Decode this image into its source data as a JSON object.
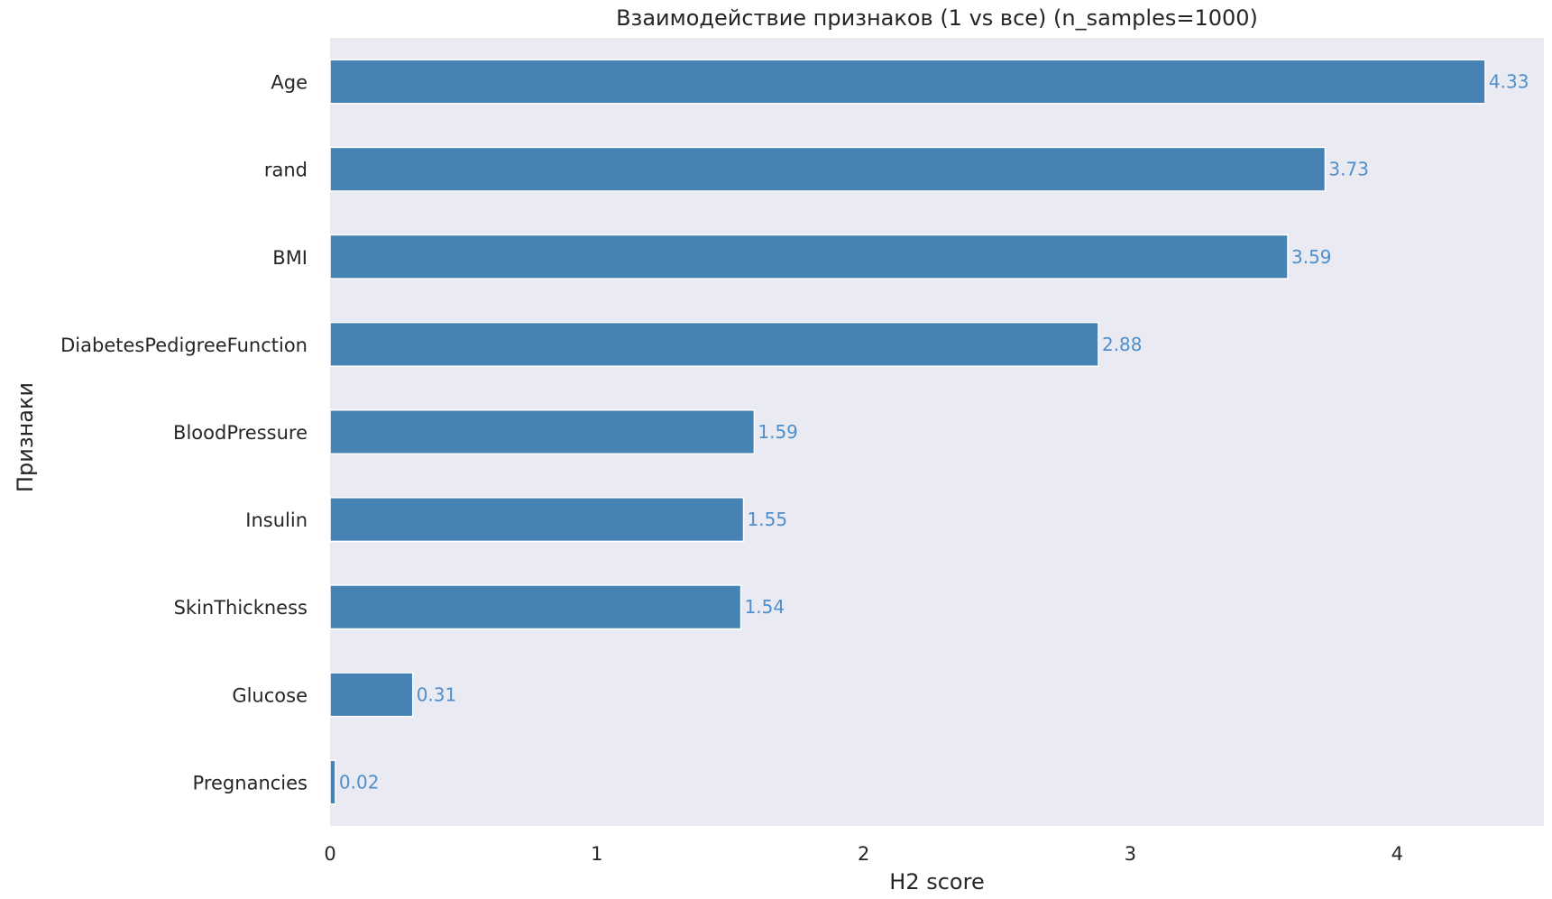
{
  "chart_data": {
    "type": "bar",
    "orientation": "horizontal",
    "title": "Взаимодействие признаков (1 vs все) (n_samples=1000)",
    "xlabel": "H2 score",
    "ylabel": "Признаки",
    "categories": [
      "Age",
      "rand",
      "BMI",
      "DiabetesPedigreeFunction",
      "BloodPressure",
      "Insulin",
      "SkinThickness",
      "Glucose",
      "Pregnancies"
    ],
    "values": [
      4.33,
      3.73,
      3.59,
      2.88,
      1.59,
      1.55,
      1.54,
      0.31,
      0.02
    ],
    "value_labels": [
      "4.33",
      "3.73",
      "3.59",
      "2.88",
      "1.59",
      "1.55",
      "1.54",
      "0.31",
      "0.02"
    ],
    "xlim": [
      0,
      4.55
    ],
    "xticks": [
      0,
      1,
      2,
      3,
      4
    ],
    "xtick_labels": [
      "0",
      "1",
      "2",
      "3",
      "4"
    ],
    "grid": false,
    "bar_color": "#4682b4",
    "label_color": "#4f8fcc",
    "background_color": "#eaeaf2"
  }
}
